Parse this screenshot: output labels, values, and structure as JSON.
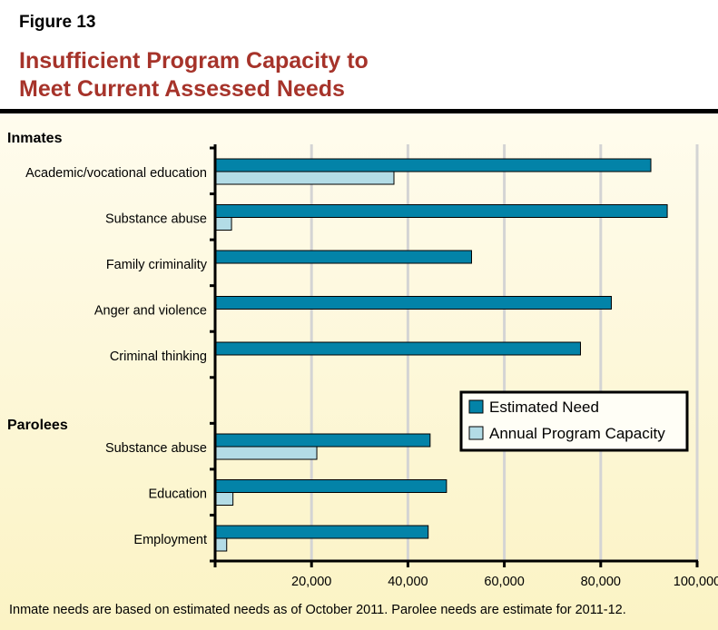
{
  "figure_label": "Figure 13",
  "title_line1": "Insufficient Program Capacity to",
  "title_line2": "Meet Current Assessed Needs",
  "footnote": "Inmate needs are based on estimated needs as of October 2011. Parolee needs are estimate for 2011-12.",
  "chart_data": {
    "type": "bar",
    "orientation": "horizontal",
    "groups": [
      {
        "name": "Inmates",
        "categories": [
          "Academic/vocational education",
          "Substance abuse",
          "Family criminality",
          "Anger and violence",
          "Criminal thinking"
        ]
      },
      {
        "name": "Parolees",
        "categories": [
          "Substance abuse",
          "Education",
          "Employment"
        ]
      }
    ],
    "categories": [
      "Academic/vocational education",
      "Substance abuse",
      "Family criminality",
      "Anger and violence",
      "Criminal thinking",
      "Substance abuse",
      "Education",
      "Employment"
    ],
    "series": [
      {
        "name": "Estimated Need",
        "color": "#0383a8",
        "values": [
          90400,
          93800,
          53200,
          82200,
          75800,
          44600,
          48000,
          44200
        ]
      },
      {
        "name": "Annual Program Capacity",
        "color": "#b3dce6",
        "values": [
          37100,
          3400,
          null,
          null,
          null,
          21100,
          3700,
          2400
        ]
      }
    ],
    "xlim": [
      0,
      100000
    ],
    "xticks": [
      20000,
      40000,
      60000,
      80000,
      100000
    ],
    "xtick_labels": [
      "20,000",
      "40,000",
      "60,000",
      "80,000",
      "100,000"
    ],
    "grid": true,
    "legend_position": "center-right"
  }
}
